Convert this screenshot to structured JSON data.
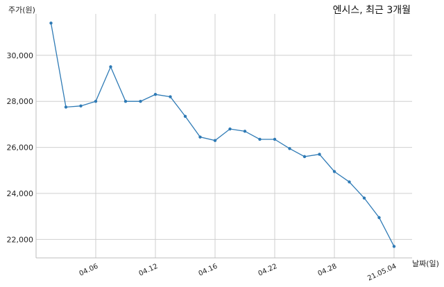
{
  "chart_data": {
    "type": "line",
    "title": "엔시스, 최근 3개월",
    "xlabel": "날짜(일)",
    "ylabel": "주가(원)",
    "ylim": [
      21200,
      31800
    ],
    "yticks": [
      22000,
      24000,
      26000,
      28000,
      30000
    ],
    "ytick_labels": [
      "22,000",
      "24,000",
      "26,000",
      "28,000",
      "30,000"
    ],
    "xtick_labels": [
      "04.06",
      "04.12",
      "04.16",
      "04.22",
      "04.28",
      "21.05.04"
    ],
    "xtick_index": [
      3,
      7,
      11,
      15,
      19,
      23
    ],
    "grid": true,
    "color": "#2e7ab5",
    "series": [
      {
        "values": [
          31400,
          27750,
          27800,
          28000,
          29500,
          28000,
          28000,
          28300,
          28200,
          27350,
          26450,
          26300,
          26800,
          26700,
          26350,
          26350,
          25950,
          25600,
          25700,
          24950,
          24500,
          23800,
          22950,
          21700
        ]
      }
    ]
  }
}
